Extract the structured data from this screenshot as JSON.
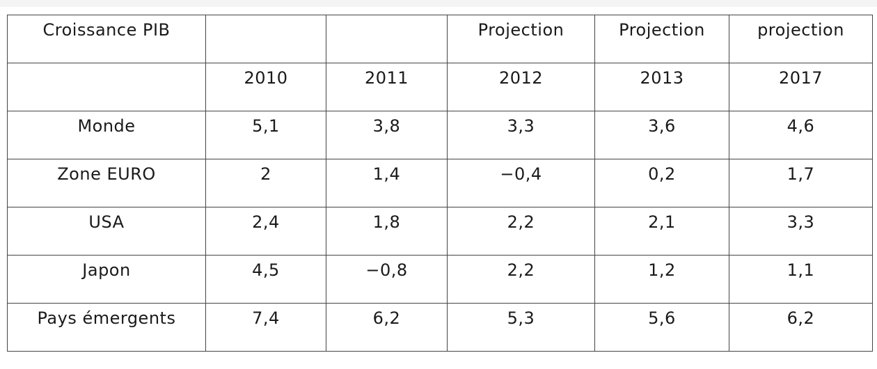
{
  "table": {
    "header_row_1": [
      "Croissance PIB",
      "",
      "",
      "Projection",
      "Projection",
      "projection"
    ],
    "header_row_2": [
      "",
      "2010",
      "2011",
      "2012",
      "2013",
      "2017"
    ],
    "rows": [
      [
        "Monde",
        "5,1",
        "3,8",
        "3,3",
        "3,6",
        "4,6"
      ],
      [
        "Zone EURO",
        "2",
        "1,4",
        "−0,4",
        "0,2",
        "1,7"
      ],
      [
        "USA",
        "2,4",
        "1,8",
        "2,2",
        "2,1",
        "3,3"
      ],
      [
        "Japon",
        "4,5",
        "−0,8",
        "2,2",
        "1,2",
        "1,1"
      ],
      [
        "Pays émergents",
        "7,4",
        "6,2",
        "5,3",
        "5,6",
        "6,2"
      ]
    ]
  }
}
